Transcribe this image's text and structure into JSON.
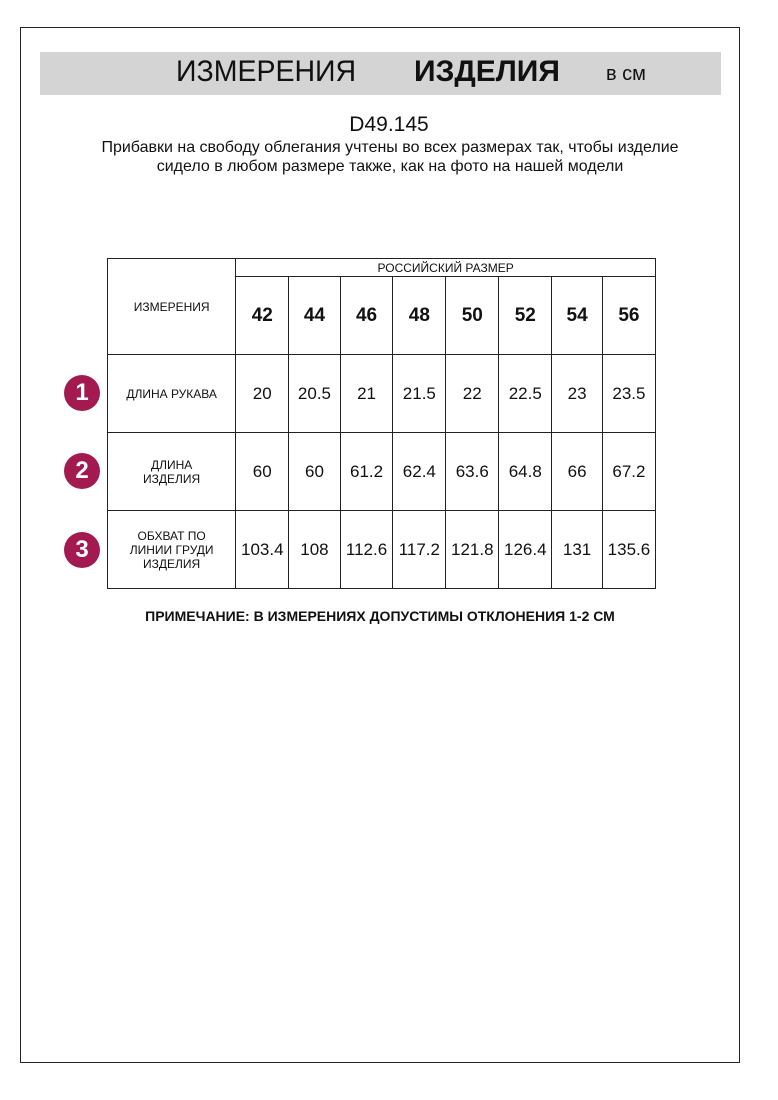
{
  "header": {
    "title_regular": "ИЗМЕРЕНИЯ",
    "title_bold": "ИЗДЕЛИЯ",
    "unit": "в см"
  },
  "article": "D49.145",
  "description": "Прибавки на свободу облегания учтены во всех размерах так, чтобы изделие сидело в любом размере также, как на фото на нашей модели",
  "table": {
    "measure_header": "ИЗМЕРЕНИЯ",
    "size_header": "РОССИЙСКИЙ РАЗМЕР",
    "sizes": [
      "42",
      "44",
      "46",
      "48",
      "50",
      "52",
      "54",
      "56"
    ],
    "rows": [
      {
        "num": "1",
        "label": "ДЛИНА РУКАВА",
        "values": [
          "20",
          "20.5",
          "21",
          "21.5",
          "22",
          "22.5",
          "23",
          "23.5"
        ]
      },
      {
        "num": "2",
        "label": "ДЛИНА ИЗДЕЛИЯ",
        "values": [
          "60",
          "60",
          "61.2",
          "62.4",
          "63.6",
          "64.8",
          "66",
          "67.2"
        ]
      },
      {
        "num": "3",
        "label": "ОБХВАТ ПО ЛИНИИ ГРУДИ ИЗДЕЛИЯ",
        "values": [
          "103.4",
          "108",
          "112.6",
          "117.2",
          "121.8",
          "126.4",
          "131",
          "135.6"
        ]
      }
    ]
  },
  "note": "ПРИМЕЧАНИЕ: В ИЗМЕРЕНИЯХ ДОПУСТИМЫ ОТКЛОНЕНИЯ 1-2 СМ",
  "colors": {
    "badge": "#a31a50",
    "band": "#d4d4d4"
  }
}
